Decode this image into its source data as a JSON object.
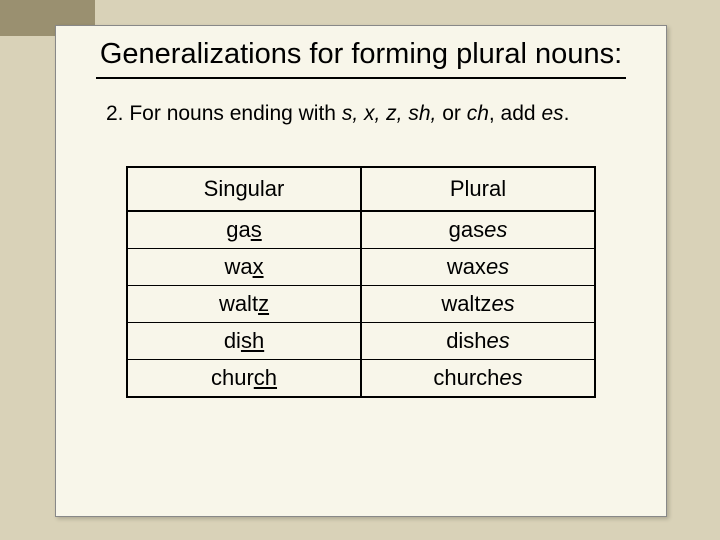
{
  "slide": {
    "title": "Generalizations for forming plural nouns:",
    "rule_number": "2.",
    "rule_prefix": "For nouns ending with ",
    "rule_letters": "s, x, z, sh,",
    "rule_or": " or ",
    "rule_letters2": "ch",
    "rule_suffix": ", add ",
    "rule_add": "es",
    "rule_period": "."
  },
  "table": {
    "headers": {
      "singular": "Singular",
      "plural": "Plural"
    },
    "rows": [
      {
        "s_pre": "ga",
        "s_u": "s",
        "p_pre": "gas",
        "p_i": "es"
      },
      {
        "s_pre": "wa",
        "s_u": "x",
        "p_pre": "wax",
        "p_i": "es"
      },
      {
        "s_pre": "walt",
        "s_u": "z",
        "p_pre": "waltz",
        "p_i": "es"
      },
      {
        "s_pre": "di",
        "s_u": "sh",
        "p_pre": "dish",
        "p_i": "es"
      },
      {
        "s_pre": "chur",
        "s_u": "ch",
        "p_pre": "church",
        "p_i": "es"
      }
    ]
  },
  "colors": {
    "background": "#d9d2b8",
    "slide_bg": "#f8f6ea",
    "corner": "#9a9070",
    "text": "#000000",
    "border": "#000000"
  }
}
